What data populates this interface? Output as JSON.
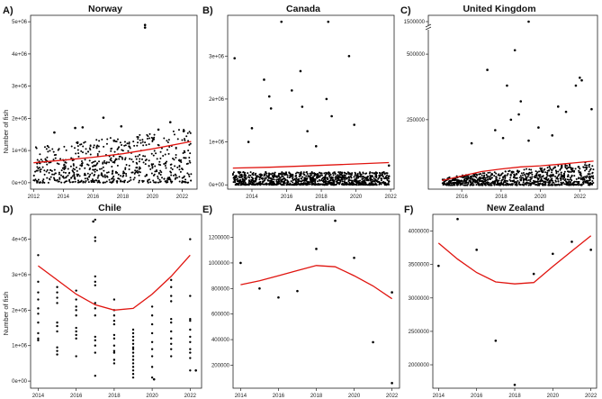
{
  "panels": [
    {
      "label": "A)",
      "title": "Norway",
      "ylabel": "Number of fish",
      "xlim": [
        2011.8,
        2023.0
      ],
      "ylim": [
        -200000,
        5200000
      ],
      "xticks": [
        2012,
        2014,
        2016,
        2018,
        2020,
        2022
      ],
      "xtick_labels": [
        "2012",
        "2014",
        "2016",
        "2018",
        "2020",
        "2022"
      ],
      "yticks": [
        0,
        1000000,
        2000000,
        3000000,
        4000000,
        5000000
      ],
      "ytick_labels": [
        "0e+00",
        "1e+06",
        "2e+06",
        "3e+06",
        "4e+06",
        "5e+06"
      ],
      "scatter": {
        "cloud": {
          "x0": 2012.0,
          "x1": 2022.6,
          "y_min": 0,
          "y_max_start": 1100000,
          "y_max_end": 1700000,
          "count": 650,
          "seed": 11
        },
        "points": [
          {
            "x": 2019.5,
            "y": 4900000
          },
          {
            "x": 2019.5,
            "y": 4820000
          },
          {
            "x": 2016.7,
            "y": 2020000
          },
          {
            "x": 2021.2,
            "y": 1880000
          },
          {
            "x": 2017.9,
            "y": 1750000
          },
          {
            "x": 2014.8,
            "y": 1700000
          },
          {
            "x": 2015.3,
            "y": 1720000
          },
          {
            "x": 2022.1,
            "y": 1600000
          },
          {
            "x": 2013.4,
            "y": 1560000
          },
          {
            "x": 2020.4,
            "y": 1650000
          }
        ]
      },
      "trend": {
        "x": [
          2012.0,
          2014,
          2016,
          2018,
          2020,
          2022.6
        ],
        "y": [
          620000,
          700000,
          790000,
          900000,
          1050000,
          1280000
        ]
      }
    },
    {
      "label": "B)",
      "title": "Canada",
      "ylabel": "",
      "xlim": [
        2012.6,
        2022.2
      ],
      "ylim": [
        -100000,
        3950000
      ],
      "xticks": [
        2014,
        2016,
        2018,
        2020,
        2022
      ],
      "xtick_labels": [
        "2014",
        "2016",
        "2018",
        "2020",
        "2022"
      ],
      "yticks": [
        0,
        1000000,
        2000000,
        3000000
      ],
      "ytick_labels": [
        "0e+00",
        "1e+06",
        "2e+06",
        "3e+06"
      ],
      "scatter": {
        "cloud": {
          "x0": 2012.9,
          "x1": 2021.9,
          "y_min": 0,
          "y_max_start": 300000,
          "y_max_end": 300000,
          "count": 1100,
          "seed": 23
        },
        "points": [
          {
            "x": 2013.0,
            "y": 2950000
          },
          {
            "x": 2015.7,
            "y": 3800000
          },
          {
            "x": 2018.4,
            "y": 3800000
          },
          {
            "x": 2019.6,
            "y": 3000000
          },
          {
            "x": 2016.8,
            "y": 2650000
          },
          {
            "x": 2014.7,
            "y": 2450000
          },
          {
            "x": 2016.3,
            "y": 2200000
          },
          {
            "x": 2015.0,
            "y": 2060000
          },
          {
            "x": 2018.3,
            "y": 2000000
          },
          {
            "x": 2015.1,
            "y": 1780000
          },
          {
            "x": 2016.9,
            "y": 1820000
          },
          {
            "x": 2018.6,
            "y": 1600000
          },
          {
            "x": 2014.0,
            "y": 1320000
          },
          {
            "x": 2019.9,
            "y": 1400000
          },
          {
            "x": 2017.2,
            "y": 1250000
          },
          {
            "x": 2013.8,
            "y": 1000000
          },
          {
            "x": 2017.7,
            "y": 900000
          },
          {
            "x": 2021.9,
            "y": 450000
          },
          {
            "x": 2021.9,
            "y": 200000
          },
          {
            "x": 2021.9,
            "y": 80000
          }
        ]
      },
      "trend": {
        "x": [
          2012.9,
          2015,
          2017,
          2019,
          2021.9
        ],
        "y": [
          390000,
          410000,
          440000,
          470000,
          520000
        ]
      }
    },
    {
      "label": "C)",
      "title": "United Kingdom",
      "ylabel": "",
      "xlim": [
        2014.3,
        2022.9
      ],
      "ylim": [
        -15000,
        600000
      ],
      "axis_break": true,
      "xticks": [
        2016,
        2018,
        2020,
        2022
      ],
      "xtick_labels": [
        "2016",
        "2018",
        "2020",
        "2022"
      ],
      "yticks": [
        250000,
        500000
      ],
      "ytick_labels": [
        "250000",
        "500000"
      ],
      "top_tick_label": "1500000",
      "scatter": {
        "cloud": {
          "x0": 2015.0,
          "x1": 2022.7,
          "y_min": 0,
          "y_max_start": 30000,
          "y_max_end": 90000,
          "count": 900,
          "seed": 37
        },
        "points": [
          {
            "x": 2017.3,
            "y": 440000
          },
          {
            "x": 2018.7,
            "y": 515000
          },
          {
            "x": 2018.3,
            "y": 380000
          },
          {
            "x": 2019.0,
            "y": 320000
          },
          {
            "x": 2018.9,
            "y": 270000
          },
          {
            "x": 2018.5,
            "y": 250000
          },
          {
            "x": 2022.0,
            "y": 410000
          },
          {
            "x": 2022.1,
            "y": 400000
          },
          {
            "x": 2021.8,
            "y": 380000
          },
          {
            "x": 2022.6,
            "y": 290000
          },
          {
            "x": 2021.3,
            "y": 280000
          },
          {
            "x": 2020.9,
            "y": 300000
          },
          {
            "x": 2019.9,
            "y": 220000
          },
          {
            "x": 2017.7,
            "y": 210000
          },
          {
            "x": 2020.6,
            "y": 190000
          },
          {
            "x": 2016.5,
            "y": 160000
          },
          {
            "x": 2018.1,
            "y": 180000
          },
          {
            "x": 2019.4,
            "y": 170000
          }
        ],
        "top_points": [
          {
            "x": 2019.4
          }
        ]
      },
      "trend": {
        "x": [
          2015.0,
          2016,
          2017,
          2018,
          2019,
          2020,
          2021,
          2022.7
        ],
        "y": [
          18000,
          35000,
          52000,
          62000,
          70000,
          74000,
          80000,
          92000
        ]
      }
    },
    {
      "label": "D)",
      "title": "Chile",
      "ylabel": "Number of fish",
      "xlim": [
        2013.6,
        2022.6
      ],
      "ylim": [
        -200000,
        4700000
      ],
      "xticks": [
        2014,
        2016,
        2018,
        2020,
        2022
      ],
      "xtick_labels": [
        "2014",
        "2016",
        "2018",
        "2020",
        "2022"
      ],
      "yticks": [
        0,
        1000000,
        2000000,
        3000000,
        4000000
      ],
      "ytick_labels": [
        "0e+00",
        "1e+06",
        "2e+06",
        "3e+06",
        "4e+06"
      ],
      "scatter": {
        "columns": [
          {
            "x": 2014,
            "ys": [
              3550000,
              2800000,
              2500000,
              2300000,
              2050000,
              1900000,
              1650000,
              1350000,
              1200000,
              1150000
            ]
          },
          {
            "x": 2015,
            "ys": [
              2650000,
              2500000,
              2350000,
              2200000,
              1650000,
              1550000,
              1400000,
              950000,
              850000,
              750000
            ]
          },
          {
            "x": 2016,
            "ys": [
              2550000,
              2300000,
              2100000,
              2000000,
              1850000,
              1500000,
              1400000,
              1300000,
              1200000,
              700000
            ]
          },
          {
            "x": 2017,
            "ys": [
              4550000,
              4050000,
              3950000,
              2950000,
              2800000,
              2700000,
              2200000,
              2050000,
              1850000,
              1250000,
              1150000,
              1000000,
              800000,
              150000
            ]
          },
          {
            "x": 2018,
            "ys": [
              2300000,
              2000000,
              1850000,
              1700000,
              1600000,
              1300000,
              1200000,
              1000000,
              850000,
              800000,
              600000,
              500000
            ]
          },
          {
            "x": 2019,
            "ys": [
              1450000,
              1350000,
              1250000,
              1150000,
              1050000,
              950000,
              900000,
              800000,
              700000,
              600000,
              500000,
              400000,
              300000,
              200000,
              100000
            ]
          },
          {
            "x": 2020,
            "ys": [
              2100000,
              1850000,
              1600000,
              1350000,
              1100000,
              900000,
              700000,
              400000,
              100000
            ]
          },
          {
            "x": 2021,
            "ys": [
              2850000,
              2650000,
              2400000,
              2250000,
              1750000,
              1650000,
              1400000,
              1200000,
              1050000,
              900000,
              700000
            ]
          },
          {
            "x": 2022,
            "ys": [
              4000000,
              2400000,
              1750000,
              1700000,
              1450000,
              1250000,
              1100000,
              900000,
              800000,
              650000,
              300000
            ]
          }
        ],
        "points": [
          {
            "x": 2020.1,
            "y": 50000
          },
          {
            "x": 2022.3,
            "y": 300000
          },
          {
            "x": 2016.9,
            "y": 4500000
          }
        ]
      },
      "trend": {
        "x": [
          2014,
          2015,
          2016,
          2017,
          2018,
          2019,
          2020,
          2021,
          2022
        ],
        "y": [
          3250000,
          2850000,
          2450000,
          2150000,
          2000000,
          2050000,
          2450000,
          2950000,
          3550000
        ]
      }
    },
    {
      "label": "E)",
      "title": "Australia",
      "ylabel": "",
      "xlim": [
        2013.6,
        2022.4
      ],
      "ylim": [
        20000,
        1380000
      ],
      "xticks": [
        2014,
        2016,
        2018,
        2020,
        2022
      ],
      "xtick_labels": [
        "2014",
        "2016",
        "2018",
        "2020",
        "2022"
      ],
      "yticks": [
        200000,
        400000,
        600000,
        800000,
        1000000,
        1200000
      ],
      "ytick_labels": [
        "200000",
        "400000",
        "600000",
        "800000",
        "1000000",
        "1200000"
      ],
      "scatter": {
        "points": [
          {
            "x": 2014,
            "y": 1000000
          },
          {
            "x": 2015,
            "y": 800000
          },
          {
            "x": 2016,
            "y": 730000
          },
          {
            "x": 2017,
            "y": 780000
          },
          {
            "x": 2018,
            "y": 1110000
          },
          {
            "x": 2019,
            "y": 1330000
          },
          {
            "x": 2020,
            "y": 1040000
          },
          {
            "x": 2021,
            "y": 380000
          },
          {
            "x": 2022,
            "y": 770000
          },
          {
            "x": 2022,
            "y": 60000
          }
        ]
      },
      "trend": {
        "x": [
          2014,
          2015,
          2016,
          2017,
          2018,
          2019,
          2020,
          2021,
          2022
        ],
        "y": [
          830000,
          860000,
          900000,
          940000,
          980000,
          970000,
          900000,
          820000,
          720000
        ]
      }
    },
    {
      "label": "F)",
      "title": "New Zealand",
      "ylabel": "",
      "xlim": [
        2013.7,
        2022.3
      ],
      "ylim": [
        1650000,
        4250000
      ],
      "xticks": [
        2014,
        2016,
        2018,
        2020,
        2022
      ],
      "xtick_labels": [
        "2014",
        "2016",
        "2018",
        "2020",
        "2022"
      ],
      "yticks": [
        2000000,
        2500000,
        3000000,
        3500000,
        4000000
      ],
      "ytick_labels": [
        "2000000",
        "2500000",
        "3000000",
        "3500000",
        "4000000"
      ],
      "scatter": {
        "points": [
          {
            "x": 2014,
            "y": 3480000
          },
          {
            "x": 2015,
            "y": 4180000
          },
          {
            "x": 2016,
            "y": 3720000
          },
          {
            "x": 2017,
            "y": 2360000
          },
          {
            "x": 2018,
            "y": 1700000
          },
          {
            "x": 2019,
            "y": 3360000
          },
          {
            "x": 2020,
            "y": 3660000
          },
          {
            "x": 2021,
            "y": 3840000
          },
          {
            "x": 2022,
            "y": 3720000
          }
        ]
      },
      "trend": {
        "x": [
          2014,
          2015,
          2016,
          2017,
          2018,
          2019,
          2020,
          2021,
          2022
        ],
        "y": [
          3820000,
          3580000,
          3380000,
          3240000,
          3210000,
          3230000,
          3470000,
          3700000,
          3930000
        ]
      }
    }
  ]
}
